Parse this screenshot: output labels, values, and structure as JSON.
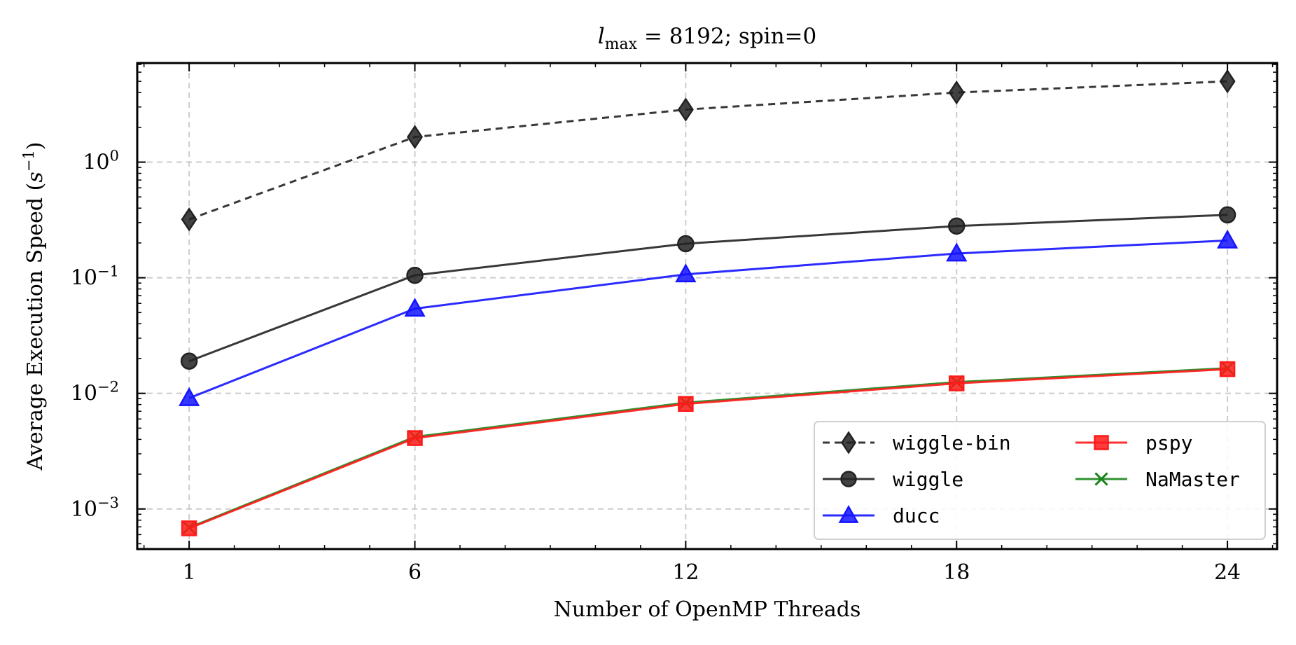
{
  "chart_data": {
    "type": "line",
    "title": {
      "symbol": "l",
      "subscript": "max",
      "rest": " = 8192; spin=0"
    },
    "xlabel": "Number of OpenMP Threads",
    "ylabel": {
      "text": "Average Execution Speed (",
      "symbol": "s",
      "exponent": "−1",
      "close": ")"
    },
    "x": [
      1,
      6,
      12,
      18,
      24
    ],
    "xticks": [
      1,
      6,
      12,
      18,
      24
    ],
    "xlim": [
      -0.15,
      25.1
    ],
    "ylim": [
      0.00045,
      7.2
    ],
    "yscale": "log",
    "yticks": [
      {
        "value": 1,
        "base": "10",
        "exp": "0"
      },
      {
        "value": 0.1,
        "base": "10",
        "exp": "−1"
      },
      {
        "value": 0.01,
        "base": "10",
        "exp": "−2"
      },
      {
        "value": 0.001,
        "base": "10",
        "exp": "−3"
      }
    ],
    "grid": true,
    "legend_position": "bottom-right",
    "series": [
      {
        "name": "wiggle-bin",
        "values": [
          0.32,
          1.65,
          2.85,
          4.0,
          5.0
        ],
        "color": "#222222",
        "marker": "diamond",
        "dash": "dashed"
      },
      {
        "name": "wiggle",
        "values": [
          0.019,
          0.105,
          0.197,
          0.28,
          0.35
        ],
        "color": "#222222",
        "marker": "circle",
        "dash": "solid"
      },
      {
        "name": "ducc",
        "values": [
          0.0091,
          0.054,
          0.107,
          0.162,
          0.21
        ],
        "color": "#1414ff",
        "marker": "triangle",
        "dash": "solid"
      },
      {
        "name": "pspy",
        "values": [
          0.00068,
          0.0041,
          0.0081,
          0.0122,
          0.0162
        ],
        "color": "#ff1a1a",
        "marker": "square",
        "dash": "solid"
      },
      {
        "name": "NaMaster",
        "values": [
          0.00069,
          0.0042,
          0.0083,
          0.0125,
          0.0165
        ],
        "color": "#1a851a",
        "marker": "x",
        "dash": "solid"
      }
    ],
    "legend_layout": [
      [
        "wiggle-bin",
        "pspy"
      ],
      [
        "wiggle",
        "NaMaster"
      ],
      [
        "ducc"
      ]
    ]
  }
}
